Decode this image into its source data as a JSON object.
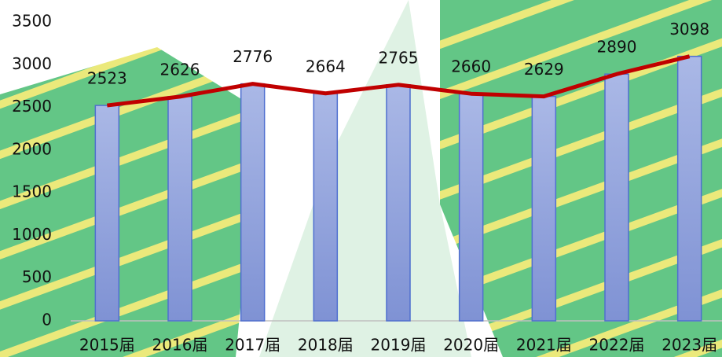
{
  "chart_data": {
    "type": "bar",
    "categories": [
      "2015届",
      "2016届",
      "2017届",
      "2018届",
      "2019届",
      "2020届",
      "2021届",
      "2022届",
      "2023届"
    ],
    "values": [
      2523,
      2626,
      2776,
      2664,
      2765,
      2660,
      2629,
      2890,
      3098
    ],
    "color": "#8fa3dc",
    "line_color": "#c00000",
    "ylim": [
      0,
      3500
    ],
    "yticks": [
      0,
      500,
      1000,
      1500,
      2000,
      2500,
      3000,
      3500
    ],
    "grid": false
  }
}
